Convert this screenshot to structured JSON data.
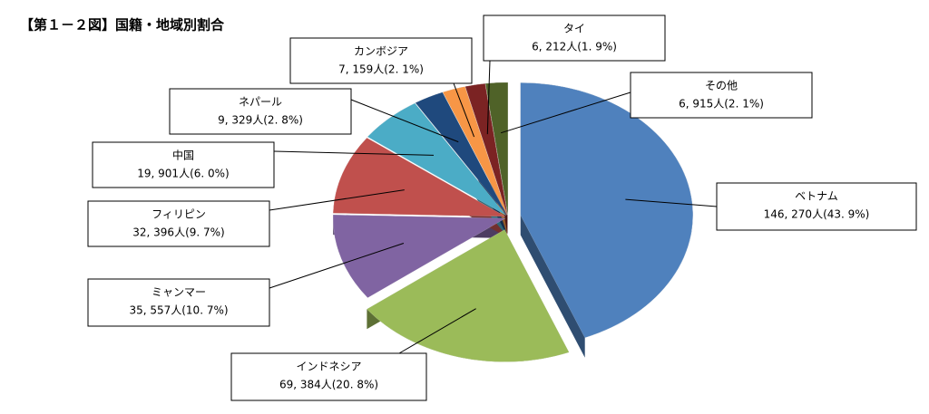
{
  "chart_data": {
    "type": "pie",
    "title": "【第１－２図】国籍・地域別割合",
    "categories": [
      "ベトナム",
      "インドネシア",
      "ミャンマー",
      "フィリピン",
      "中国",
      "ネパール",
      "カンボジア",
      "タイ",
      "その他"
    ],
    "values": [
      146270,
      69384,
      35557,
      32396,
      19901,
      9329,
      7159,
      6212,
      6915
    ],
    "value_labels": [
      "146, 270人(43. 9%)",
      "69, 384人(20. 8%)",
      "35, 557人(10. 7%)",
      "32, 396人(9. 7%)",
      "19, 901人(6. 0%)",
      "9, 329人(2. 8%)",
      "7, 159人(2. 1%)",
      "6, 212人(1. 9%)",
      "6, 915人(2. 1%)"
    ],
    "colors": [
      "#4f81bd",
      "#9bbb59",
      "#8064a2",
      "#c0504d",
      "#4bacc6",
      "#1f497d",
      "#f79646",
      "#7b2323",
      "#4f6228"
    ]
  }
}
